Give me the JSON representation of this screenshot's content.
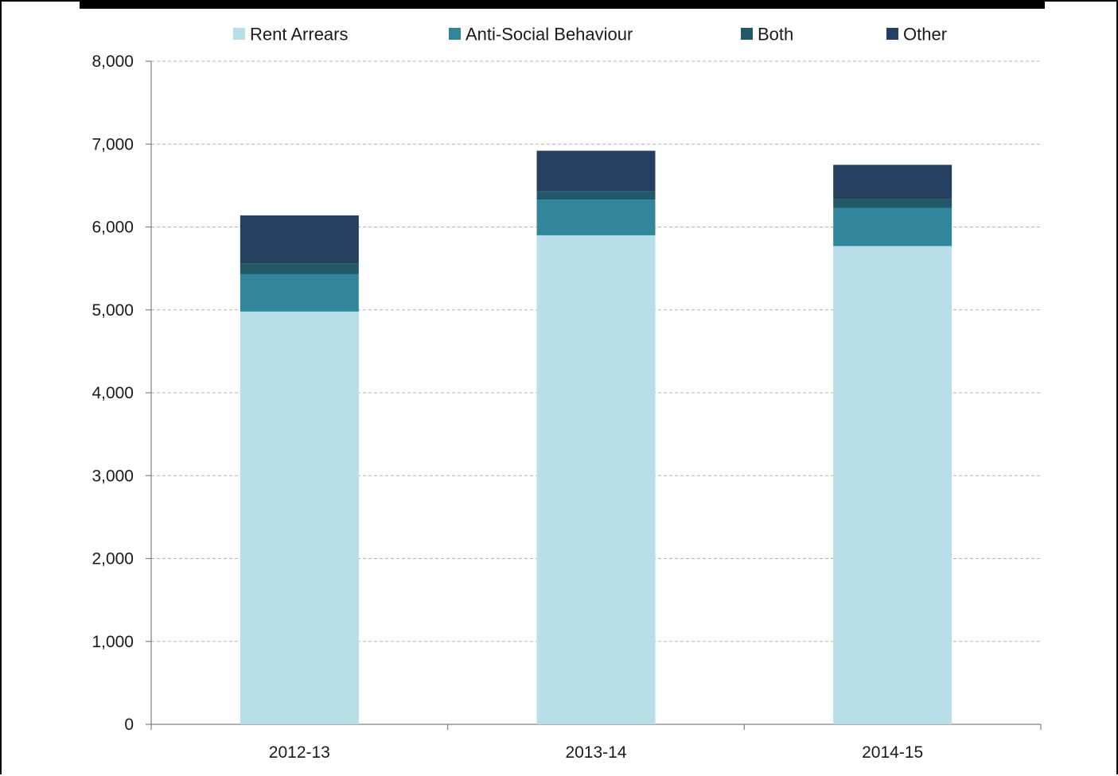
{
  "chart_data": {
    "type": "bar",
    "stacked": true,
    "categories": [
      "2012-13",
      "2013-14",
      "2014-15"
    ],
    "series": [
      {
        "name": "Rent Arrears",
        "color": "#b8dee8",
        "values": [
          4980,
          5900,
          5770
        ]
      },
      {
        "name": "Anti-Social Behaviour",
        "color": "#31869b",
        "values": [
          450,
          430,
          460
        ]
      },
      {
        "name": "Both",
        "color": "#215968",
        "values": [
          130,
          100,
          110
        ]
      },
      {
        "name": "Other",
        "color": "#243f60",
        "values": [
          580,
          490,
          410
        ]
      }
    ],
    "ylim": [
      0,
      8000
    ],
    "yticks": [
      "0",
      "1,000",
      "2,000",
      "3,000",
      "4,000",
      "5,000",
      "6,000",
      "7,000",
      "8,000"
    ],
    "ytick_values": [
      0,
      1000,
      2000,
      3000,
      4000,
      5000,
      6000,
      7000,
      8000
    ],
    "grid": true,
    "legend_position": "top"
  }
}
